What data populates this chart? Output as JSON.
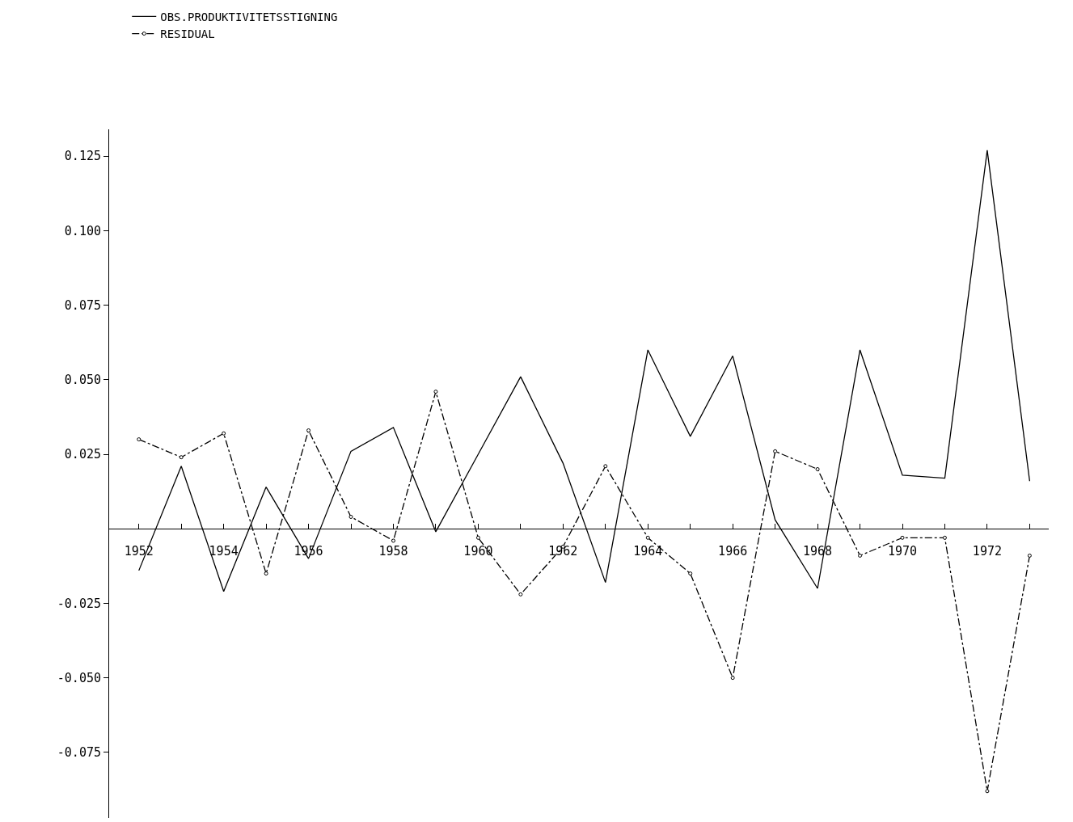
{
  "chart_data": {
    "type": "line",
    "x": [
      1952,
      1953,
      1954,
      1955,
      1956,
      1957,
      1958,
      1959,
      1960,
      1961,
      1962,
      1963,
      1964,
      1965,
      1966,
      1967,
      1968,
      1969,
      1970,
      1971,
      1972,
      1973
    ],
    "series": [
      {
        "name": "OBS.PRODUKTIVITETSSTIGNING",
        "color": "#000000",
        "line_style": "solid",
        "marker": "none",
        "values": [
          -0.014,
          0.021,
          -0.021,
          0.014,
          -0.01,
          0.026,
          0.034,
          -0.001,
          0.025,
          0.051,
          0.022,
          -0.018,
          0.06,
          0.031,
          0.058,
          0.003,
          -0.02,
          0.06,
          0.018,
          0.017,
          0.127,
          0.016
        ]
      },
      {
        "name": "RESIDUAL",
        "color": "#000000",
        "line_style": "dashdot",
        "marker": "circle",
        "values": [
          0.03,
          0.024,
          0.032,
          -0.015,
          0.033,
          0.004,
          -0.004,
          0.046,
          -0.003,
          -0.022,
          -0.006,
          0.021,
          -0.003,
          -0.015,
          -0.05,
          0.026,
          0.02,
          -0.009,
          -0.003,
          -0.003,
          -0.088,
          -0.009
        ]
      }
    ],
    "xlim": [
      1951.3,
      1973.45
    ],
    "ylim": [
      -0.097,
      0.134
    ],
    "xticks": [
      1952,
      {
        "value": 1953,
        "label": null
      },
      1954,
      {
        "value": 1955,
        "label": null
      },
      1956,
      {
        "value": 1957,
        "label": null
      },
      1958,
      {
        "value": 1959,
        "label": null
      },
      1960,
      {
        "value": 1961,
        "label": null
      },
      1962,
      {
        "value": 1963,
        "label": null
      },
      1964,
      {
        "value": 1965,
        "label": null
      },
      1966,
      {
        "value": 1967,
        "label": null
      },
      1968,
      {
        "value": 1969,
        "label": null
      },
      1970,
      {
        "value": 1971,
        "label": null
      },
      1972,
      {
        "value": 1973,
        "label": null
      }
    ],
    "yticks": [
      {
        "value": -0.075,
        "label": "-0.075"
      },
      {
        "value": -0.05,
        "label": "-0.050"
      },
      {
        "value": -0.025,
        "label": "-0.025"
      },
      {
        "value": 0.025,
        "label": "0.025"
      },
      {
        "value": 0.05,
        "label": "0.050"
      },
      {
        "value": 0.075,
        "label": "0.075"
      },
      {
        "value": 0.1,
        "label": "0.100"
      },
      {
        "value": 0.125,
        "label": "0.125"
      }
    ],
    "legend": "top left"
  }
}
